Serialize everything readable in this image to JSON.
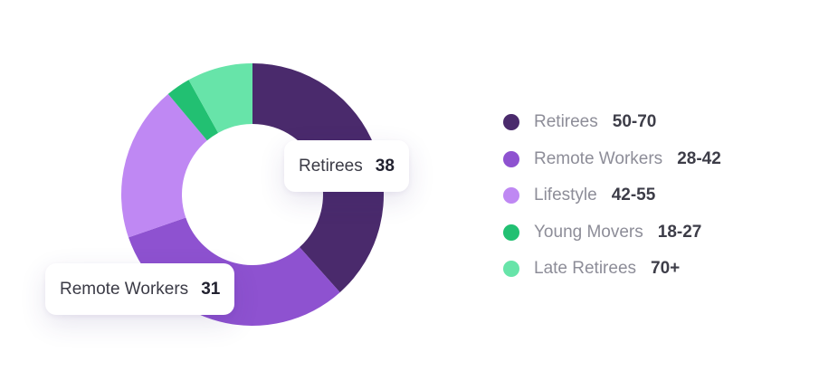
{
  "chart_data": {
    "type": "pie",
    "donut": true,
    "segments": [
      {
        "name": "Retirees",
        "value": 38,
        "color": "#4a2a6c"
      },
      {
        "name": "Remote Workers",
        "value": 31,
        "color": "#8e52d0"
      },
      {
        "name": "Lifestyle",
        "value": 19,
        "color": "#bf88f3"
      },
      {
        "name": "Young Movers",
        "value": 3,
        "color": "#22c072"
      },
      {
        "name": "Late Retirees",
        "value": 8,
        "color": "#67e4a9"
      }
    ],
    "tooltips": [
      {
        "label": "Retirees",
        "value": "38"
      },
      {
        "label": "Remote Workers",
        "value": "31"
      }
    ],
    "legend": [
      {
        "label": "Retirees",
        "range": "50-70",
        "color": "#4a2a6c"
      },
      {
        "label": "Remote Workers",
        "range": "28-42",
        "color": "#8e52d0"
      },
      {
        "label": "Lifestyle",
        "range": "42-55",
        "color": "#bf88f3"
      },
      {
        "label": "Young Movers",
        "range": "18-27",
        "color": "#22c072"
      },
      {
        "label": "Late Retirees",
        "range": "70+",
        "color": "#67e4a9"
      }
    ],
    "legend_position": "right"
  }
}
